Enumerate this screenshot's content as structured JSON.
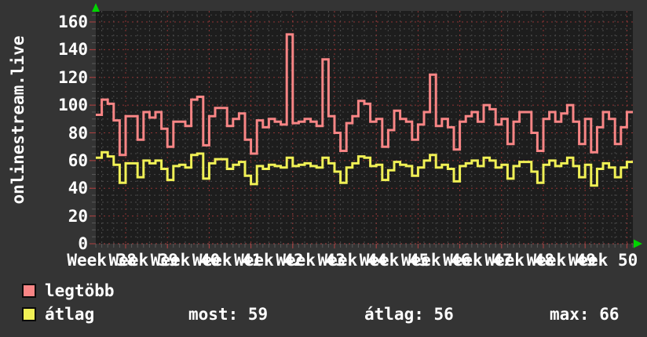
{
  "title": "onlinestream.live",
  "colors": {
    "background": "#343434",
    "plot_background": "#1d1d1d",
    "text": "#ffffff",
    "grid_minor": "#4a4a4a",
    "grid_major_red": "#8f3434",
    "baseline_red": "#a84343",
    "tick_minor": "#5a5a5a",
    "tick_major": "#b04040",
    "axis_arrow_green": "#00d400",
    "series_max_red": "#f88585",
    "series_avg_yellow": "#f0f055"
  },
  "legend": [
    {
      "label": "legtöbb",
      "color": "#f88585"
    },
    {
      "label": "átlag",
      "color": "#f0f055"
    }
  ],
  "stats": [
    {
      "text": "most: 59"
    },
    {
      "text": "átlag: 56"
    },
    {
      "text": "max: 66"
    }
  ],
  "chart_data": {
    "type": "line",
    "subtype": "staircase",
    "title": "onlinestream.live",
    "x_unit": "days (Week 38 – Week 50)",
    "x_tick_labels": [
      "Week 38",
      "Week 39",
      "Week 40",
      "Week 41",
      "Week 42",
      "Week 43",
      "Week 44",
      "Week 45",
      "Week 46",
      "Week 47",
      "Week 48",
      "Week 49",
      "Week 50"
    ],
    "y_ticks": [
      0,
      20,
      40,
      60,
      80,
      100,
      120,
      140,
      160
    ],
    "ylim": [
      0,
      168
    ],
    "grid": "dotted, minor every 5 units / 2 days, major red every 20 units / 1 week",
    "legend_position": "bottom-left",
    "series": [
      {
        "name": "legtöbb",
        "color": "#f88585",
        "values": [
          93,
          104,
          101,
          89,
          64,
          92,
          92,
          75,
          95,
          91,
          95,
          83,
          70,
          88,
          88,
          85,
          104,
          106,
          71,
          92,
          98,
          98,
          85,
          90,
          94,
          75,
          65,
          89,
          84,
          90,
          88,
          86,
          151,
          87,
          88,
          90,
          88,
          85,
          133,
          92,
          80,
          67,
          87,
          92,
          103,
          101,
          88,
          90,
          70,
          82,
          96,
          90,
          88,
          75,
          86,
          95,
          122,
          85,
          90,
          84,
          68,
          88,
          92,
          95,
          88,
          100,
          97,
          86,
          90,
          72,
          88,
          95,
          95,
          80,
          67,
          90,
          95,
          88,
          94,
          100,
          88,
          72,
          90,
          66,
          84,
          95,
          90,
          72,
          84,
          95
        ]
      },
      {
        "name": "átlag",
        "color": "#f0f055",
        "values": [
          62,
          66,
          63,
          57,
          44,
          58,
          58,
          48,
          60,
          58,
          60,
          54,
          46,
          56,
          57,
          55,
          64,
          65,
          47,
          58,
          61,
          61,
          54,
          57,
          59,
          49,
          43,
          56,
          54,
          57,
          56,
          55,
          62,
          56,
          57,
          58,
          56,
          55,
          62,
          58,
          52,
          44,
          55,
          58,
          63,
          62,
          56,
          57,
          46,
          53,
          59,
          57,
          56,
          49,
          55,
          60,
          64,
          55,
          57,
          54,
          45,
          56,
          58,
          60,
          56,
          62,
          60,
          55,
          57,
          47,
          56,
          59,
          59,
          52,
          44,
          57,
          60,
          56,
          58,
          62,
          56,
          48,
          57,
          42,
          54,
          58,
          55,
          48,
          55,
          59
        ]
      }
    ],
    "stats_shown": {
      "most": 59,
      "átlag": 56,
      "max": 66
    }
  }
}
